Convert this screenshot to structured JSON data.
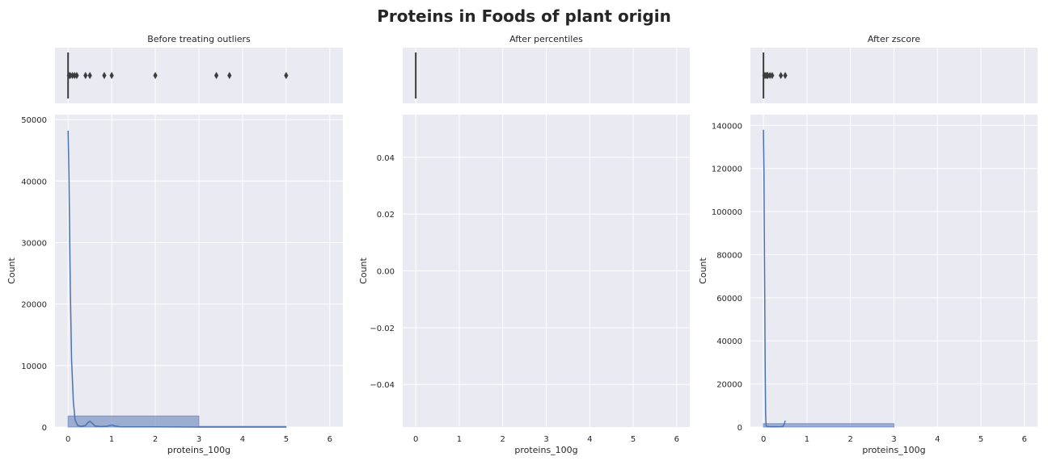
{
  "figure": {
    "title": "Proteins in Foods of plant origin",
    "colors": {
      "background": "#EAEAF2",
      "grid": "#FFFFFF",
      "accent": "#4C72B0",
      "box": "#3D3D3D"
    }
  },
  "chart_data": [
    {
      "type": "histogram",
      "title": "Before treating outliers",
      "xlabel": "proteins_100g",
      "ylabel": "Count",
      "xlim": [
        -0.3,
        6.3
      ],
      "ylim": [
        0,
        50800
      ],
      "xticks": [
        0,
        1,
        2,
        3,
        4,
        5,
        6
      ],
      "yticks": [
        0,
        10000,
        20000,
        30000,
        40000,
        50000
      ],
      "ytick_labels": [
        "0",
        "10000",
        "20000",
        "30000",
        "40000",
        "50000"
      ],
      "bins": [
        {
          "x0": 0,
          "x1": 3,
          "count": 1800
        },
        {
          "x0": 3,
          "x1": 5,
          "count": 120
        }
      ],
      "kde": [
        [
          0.0,
          48200
        ],
        [
          0.02,
          41000
        ],
        [
          0.05,
          23000
        ],
        [
          0.08,
          11000
        ],
        [
          0.12,
          4200
        ],
        [
          0.16,
          1200
        ],
        [
          0.22,
          250
        ],
        [
          0.3,
          120
        ],
        [
          0.4,
          250
        ],
        [
          0.45,
          700
        ],
        [
          0.5,
          950
        ],
        [
          0.55,
          650
        ],
        [
          0.62,
          180
        ],
        [
          0.75,
          80
        ],
        [
          0.9,
          140
        ],
        [
          1.0,
          340
        ],
        [
          1.08,
          180
        ],
        [
          1.2,
          40
        ],
        [
          1.6,
          20
        ],
        [
          2.0,
          30
        ],
        [
          2.5,
          10
        ],
        [
          3.0,
          5
        ],
        [
          4.0,
          5
        ],
        [
          5.0,
          5
        ]
      ],
      "boxplot": {
        "q1": 0,
        "median": 0,
        "q3": 0,
        "whisker_low": 0,
        "whisker_high": 0,
        "outliers": [
          0.02,
          0.05,
          0.1,
          0.15,
          0.2,
          0.4,
          0.5,
          0.83,
          1.0,
          2.0,
          3.4,
          3.7,
          5.0
        ]
      }
    },
    {
      "type": "histogram",
      "title": "After percentiles",
      "xlabel": "proteins_100g",
      "ylabel": "Count",
      "xlim": [
        -0.3,
        6.3
      ],
      "ylim": [
        -0.055,
        0.055
      ],
      "xticks": [
        0,
        1,
        2,
        3,
        4,
        5,
        6
      ],
      "yticks": [
        -0.04,
        -0.02,
        0.0,
        0.02,
        0.04
      ],
      "ytick_labels": [
        "−0.04",
        "−0.02",
        "0.00",
        "0.02",
        "0.04"
      ],
      "bins": [],
      "kde": [],
      "boxplot": {
        "q1": 0,
        "median": 0,
        "q3": 0,
        "whisker_low": 0,
        "whisker_high": 0,
        "outliers": []
      }
    },
    {
      "type": "histogram",
      "title": "After zscore",
      "xlabel": "proteins_100g",
      "ylabel": "Count",
      "xlim": [
        -0.3,
        6.3
      ],
      "ylim": [
        0,
        145000
      ],
      "xticks": [
        0,
        1,
        2,
        3,
        4,
        5,
        6
      ],
      "yticks": [
        0,
        20000,
        40000,
        60000,
        80000,
        100000,
        120000,
        140000
      ],
      "ytick_labels": [
        "0",
        "20000",
        "40000",
        "60000",
        "80000",
        "100000",
        "120000",
        "140000"
      ],
      "bins": [
        {
          "x0": 0,
          "x1": 3,
          "count": 1600
        }
      ],
      "kde": [
        [
          0.0,
          138000
        ],
        [
          0.01,
          120000
        ],
        [
          0.02,
          90000
        ],
        [
          0.03,
          55000
        ],
        [
          0.04,
          25000
        ],
        [
          0.05,
          6000
        ],
        [
          0.06,
          800
        ],
        [
          0.08,
          300
        ],
        [
          0.12,
          200
        ],
        [
          0.2,
          150
        ],
        [
          0.3,
          150
        ],
        [
          0.4,
          200
        ],
        [
          0.45,
          300
        ],
        [
          0.48,
          1500
        ],
        [
          0.5,
          3000
        ]
      ],
      "boxplot": {
        "q1": 0,
        "median": 0,
        "q3": 0,
        "whisker_low": 0,
        "whisker_high": 0,
        "outliers": [
          0.02,
          0.05,
          0.08,
          0.1,
          0.15,
          0.2,
          0.4,
          0.5
        ]
      }
    }
  ]
}
